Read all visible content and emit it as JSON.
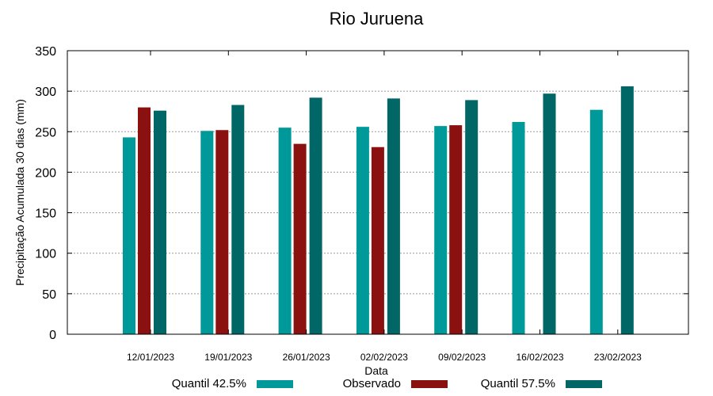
{
  "chart_data": {
    "type": "bar",
    "title": "Rio Juruena",
    "xlabel": "Data",
    "ylabel": "Precipitação Acumulada 30 dias (mm)",
    "ylim": [
      0,
      350
    ],
    "yticks": [
      0,
      50,
      100,
      150,
      200,
      250,
      300,
      350
    ],
    "grid": true,
    "legend_position": "bottom",
    "categories": [
      "12/01/2023",
      "19/01/2023",
      "26/01/2023",
      "02/02/2023",
      "09/02/2023",
      "16/02/2023",
      "23/02/2023"
    ],
    "series": [
      {
        "name": "Quantil 42.5%",
        "color": "#009999",
        "values": [
          243,
          251,
          255,
          256,
          257,
          262,
          277
        ]
      },
      {
        "name": "Observado",
        "color": "#8b1010",
        "values": [
          280,
          252,
          235,
          231,
          258,
          null,
          null
        ]
      },
      {
        "name": "Quantil 57.5%",
        "color": "#006666",
        "values": [
          276,
          283,
          292,
          291,
          289,
          297,
          306
        ]
      }
    ]
  }
}
